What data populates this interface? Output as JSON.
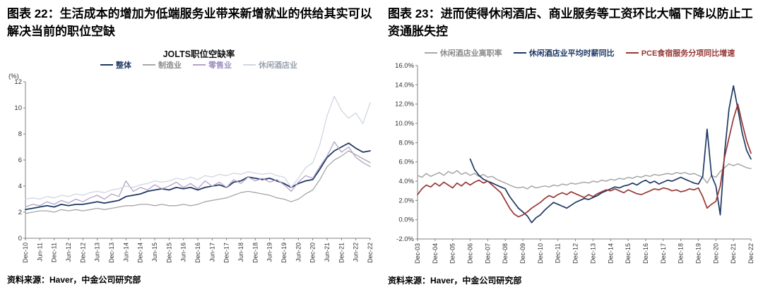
{
  "figures": [
    {
      "heading": "图表 22：生活成本的增加为低端服务业带来新增就业的供给其实可以解决当前的职位空缺",
      "source": "资料来源：Haver，中金公司研究部"
    },
    {
      "heading": "图表 23：进而使得休闲酒店、商业服务等工资环比大幅下降以防止工资通胀失控",
      "source": "资料来源：Haver，中金公司研究部"
    }
  ],
  "chart_data": [
    {
      "type": "line",
      "title": "JOLTS职位空缺率",
      "y_unit_label": "(%)",
      "ylim": [
        0,
        12
      ],
      "grid": false,
      "legend_position": "top",
      "yticks": [
        {
          "v": 0,
          "label": "0"
        },
        {
          "v": 2,
          "label": "2"
        },
        {
          "v": 4,
          "label": "4"
        },
        {
          "v": 6,
          "label": "6"
        },
        {
          "v": 8,
          "label": "8"
        },
        {
          "v": 10,
          "label": "10"
        },
        {
          "v": 12,
          "label": "12"
        }
      ],
      "xticks": [
        {
          "i": 0,
          "label": "Dec-10"
        },
        {
          "i": 2,
          "label": "Jun-11"
        },
        {
          "i": 4,
          "label": "Dec-11"
        },
        {
          "i": 6,
          "label": "Jun-12"
        },
        {
          "i": 8,
          "label": "Dec-12"
        },
        {
          "i": 10,
          "label": "Jun-13"
        },
        {
          "i": 12,
          "label": "Dec-13"
        },
        {
          "i": 14,
          "label": "Jun-14"
        },
        {
          "i": 16,
          "label": "Dec-14"
        },
        {
          "i": 18,
          "label": "Jun-15"
        },
        {
          "i": 20,
          "label": "Dec-15"
        },
        {
          "i": 22,
          "label": "Jun-16"
        },
        {
          "i": 24,
          "label": "Dec-16"
        },
        {
          "i": 26,
          "label": "Jun-17"
        },
        {
          "i": 28,
          "label": "Dec-17"
        },
        {
          "i": 30,
          "label": "Jun-18"
        },
        {
          "i": 32,
          "label": "Dec-18"
        },
        {
          "i": 34,
          "label": "Jun-19"
        },
        {
          "i": 36,
          "label": "Dec-19"
        },
        {
          "i": 38,
          "label": "Jun-20"
        },
        {
          "i": 40,
          "label": "Dec-20"
        },
        {
          "i": 42,
          "label": "Jun-21"
        },
        {
          "i": 44,
          "label": "Dec-21"
        },
        {
          "i": 46,
          "label": "Jun-22"
        },
        {
          "i": 48,
          "label": "Dec-22"
        }
      ],
      "x_frequency": "quarterly",
      "x_range": [
        "Dec-10",
        "Dec-22"
      ],
      "series": [
        {
          "name": "整体",
          "color": "#1F3864",
          "legend_color": "#1F3864",
          "width": 1.8,
          "values": [
            2.2,
            2.3,
            2.4,
            2.5,
            2.4,
            2.6,
            2.5,
            2.6,
            2.6,
            2.7,
            2.8,
            2.7,
            2.8,
            2.9,
            3.2,
            3.3,
            3.4,
            3.6,
            3.7,
            3.8,
            3.7,
            3.9,
            3.8,
            3.9,
            3.7,
            3.9,
            4.0,
            4.1,
            3.9,
            4.3,
            4.4,
            4.7,
            4.6,
            4.5,
            4.6,
            4.4,
            4.2,
            3.9,
            4.2,
            4.4,
            4.5,
            5.3,
            6.2,
            6.7,
            7.0,
            7.3,
            6.9,
            6.6,
            6.7
          ]
        },
        {
          "name": "制造业",
          "color": "#A6A6A6",
          "legend_color": "#8C8C8C",
          "width": 1.3,
          "values": [
            1.9,
            2.0,
            2.1,
            2.1,
            2.0,
            2.2,
            2.1,
            2.2,
            2.1,
            2.2,
            2.3,
            2.2,
            2.3,
            2.4,
            2.5,
            2.5,
            2.6,
            2.6,
            2.5,
            2.6,
            2.5,
            2.5,
            2.6,
            2.5,
            2.6,
            2.8,
            2.9,
            3.0,
            3.1,
            3.3,
            3.5,
            3.6,
            3.5,
            3.4,
            3.3,
            3.1,
            3.0,
            2.8,
            3.0,
            3.4,
            3.7,
            4.5,
            5.5,
            6.0,
            6.3,
            6.7,
            6.4,
            6.1,
            5.8
          ]
        },
        {
          "name": "零售业",
          "color": "#B3A2C7",
          "legend_color": "#9E8FBE",
          "width": 1.3,
          "values": [
            2.4,
            2.6,
            2.5,
            2.8,
            2.6,
            2.9,
            2.7,
            3.0,
            2.8,
            3.1,
            3.3,
            3.0,
            3.4,
            3.2,
            4.4,
            3.6,
            3.9,
            3.7,
            4.1,
            3.8,
            4.0,
            4.3,
            3.9,
            4.2,
            3.8,
            4.4,
            4.0,
            4.3,
            3.9,
            4.5,
            4.2,
            4.7,
            4.4,
            4.6,
            4.3,
            4.5,
            4.1,
            3.6,
            4.3,
            4.8,
            4.6,
            5.5,
            6.3,
            7.4,
            6.6,
            7.0,
            6.2,
            5.8,
            5.5
          ]
        },
        {
          "name": "休闲酒店业",
          "color": "#D0D6E0",
          "legend_color": "#9AA3B0",
          "width": 1.3,
          "values": [
            3.0,
            3.1,
            3.0,
            3.2,
            3.1,
            3.3,
            3.2,
            3.4,
            3.3,
            3.5,
            3.6,
            3.5,
            3.7,
            3.8,
            4.0,
            3.9,
            4.1,
            4.2,
            4.4,
            4.3,
            4.4,
            4.6,
            4.5,
            4.7,
            4.5,
            4.8,
            4.7,
            4.9,
            4.8,
            5.0,
            4.9,
            5.1,
            5.0,
            4.9,
            5.0,
            4.8,
            4.7,
            3.9,
            4.6,
            5.4,
            5.8,
            7.2,
            9.4,
            10.9,
            9.8,
            9.2,
            9.6,
            8.8,
            10.4
          ]
        }
      ]
    },
    {
      "type": "line",
      "title": "",
      "y_unit_label": "",
      "ylim": [
        -2,
        16
      ],
      "grid": false,
      "legend_position": "top",
      "yticks": [
        {
          "v": -2,
          "label": "-2.0%"
        },
        {
          "v": 0,
          "label": "0.0%"
        },
        {
          "v": 2,
          "label": "2.0%"
        },
        {
          "v": 4,
          "label": "4.0%"
        },
        {
          "v": 6,
          "label": "6.0%"
        },
        {
          "v": 8,
          "label": "8.0%"
        },
        {
          "v": 10,
          "label": "10.0%"
        },
        {
          "v": 12,
          "label": "12.0%"
        },
        {
          "v": 14,
          "label": "14.0%"
        },
        {
          "v": 16,
          "label": "16.0%"
        }
      ],
      "xticks": [
        {
          "i": 0,
          "label": "Dec-03"
        },
        {
          "i": 4,
          "label": "Dec-04"
        },
        {
          "i": 8,
          "label": "Dec-05"
        },
        {
          "i": 12,
          "label": "Dec-06"
        },
        {
          "i": 16,
          "label": "Dec-07"
        },
        {
          "i": 20,
          "label": "Dec-08"
        },
        {
          "i": 24,
          "label": "Dec-09"
        },
        {
          "i": 28,
          "label": "Dec-10"
        },
        {
          "i": 32,
          "label": "Dec-11"
        },
        {
          "i": 36,
          "label": "Dec-12"
        },
        {
          "i": 40,
          "label": "Dec-13"
        },
        {
          "i": 44,
          "label": "Dec-14"
        },
        {
          "i": 48,
          "label": "Dec-15"
        },
        {
          "i": 52,
          "label": "Dec-16"
        },
        {
          "i": 56,
          "label": "Dec-17"
        },
        {
          "i": 60,
          "label": "Dec-18"
        },
        {
          "i": 64,
          "label": "Dec-19"
        },
        {
          "i": 68,
          "label": "Dec-20"
        },
        {
          "i": 72,
          "label": "Dec-21"
        },
        {
          "i": 76,
          "label": "Dec-22"
        }
      ],
      "x_frequency": "quarterly",
      "x_range": [
        "Dec-03",
        "Dec-22"
      ],
      "series": [
        {
          "name": "休闲酒店业离职率",
          "color": "#A6A6A6",
          "legend_color": "#8C8C8C",
          "width": 1.5,
          "values": [
            4.6,
            4.4,
            4.8,
            4.5,
            4.7,
            4.9,
            4.6,
            5.0,
            4.8,
            5.1,
            4.7,
            4.9,
            4.6,
            4.8,
            4.5,
            4.7,
            4.4,
            4.5,
            4.2,
            4.0,
            3.8,
            3.6,
            3.4,
            3.3,
            3.4,
            3.2,
            3.5,
            3.3,
            3.4,
            3.5,
            3.4,
            3.6,
            3.5,
            3.7,
            3.6,
            3.8,
            3.7,
            3.8,
            3.9,
            3.8,
            4.0,
            3.9,
            4.1,
            4.0,
            4.2,
            4.1,
            4.3,
            4.2,
            4.4,
            4.3,
            4.5,
            4.4,
            4.6,
            4.5,
            4.7,
            4.6,
            4.7,
            4.8,
            4.7,
            4.9,
            4.8,
            4.9,
            4.7,
            4.8,
            4.6,
            4.4,
            3.8,
            4.6,
            4.4,
            5.0,
            5.4,
            5.8,
            5.6,
            5.8,
            5.6,
            5.4,
            5.3
          ]
        },
        {
          "name": "休闲酒店业平均时薪同比",
          "color": "#1F3864",
          "legend_color": "#1F3864",
          "width": 1.7,
          "values": [
            null,
            null,
            null,
            null,
            null,
            null,
            null,
            null,
            null,
            null,
            null,
            null,
            6.3,
            5.2,
            4.6,
            4.2,
            4.0,
            3.8,
            3.6,
            3.4,
            3.2,
            2.4,
            1.8,
            1.2,
            0.8,
            0.4,
            -0.3,
            0.2,
            0.5,
            1.0,
            1.4,
            1.8,
            1.6,
            1.4,
            1.2,
            1.5,
            1.8,
            2.0,
            2.2,
            2.1,
            2.3,
            2.5,
            2.8,
            3.0,
            3.2,
            3.4,
            3.3,
            3.5,
            3.6,
            3.8,
            3.6,
            3.9,
            4.1,
            3.8,
            4.0,
            3.7,
            3.9,
            4.1,
            4.0,
            4.2,
            4.4,
            4.2,
            4.0,
            3.8,
            3.7,
            4.5,
            9.4,
            4.6,
            3.5,
            0.5,
            7.0,
            11.5,
            13.9,
            11.5,
            9.0,
            7.2,
            6.3
          ]
        },
        {
          "name": "PCE食宿服务分项同比增速",
          "color": "#953735",
          "legend_color": "#953735",
          "width": 1.7,
          "values": [
            2.6,
            3.2,
            3.6,
            3.4,
            3.8,
            3.5,
            3.9,
            3.6,
            3.3,
            3.8,
            3.5,
            3.9,
            3.6,
            3.9,
            4.1,
            3.8,
            4.0,
            3.6,
            3.2,
            2.8,
            2.0,
            1.2,
            0.6,
            0.3,
            0.5,
            0.8,
            1.2,
            1.5,
            1.8,
            2.2,
            2.5,
            2.3,
            2.6,
            2.8,
            2.6,
            2.9,
            2.7,
            2.5,
            2.3,
            2.6,
            2.4,
            2.7,
            2.9,
            3.1,
            3.0,
            3.2,
            3.0,
            2.8,
            3.1,
            2.9,
            2.7,
            2.6,
            2.8,
            3.0,
            3.2,
            3.1,
            3.3,
            3.2,
            3.0,
            3.1,
            2.9,
            3.0,
            3.2,
            3.1,
            3.3,
            2.4,
            1.2,
            1.6,
            1.9,
            3.5,
            6.5,
            8.5,
            10.5,
            12.0,
            10.0,
            8.2,
            6.9
          ]
        }
      ]
    }
  ]
}
